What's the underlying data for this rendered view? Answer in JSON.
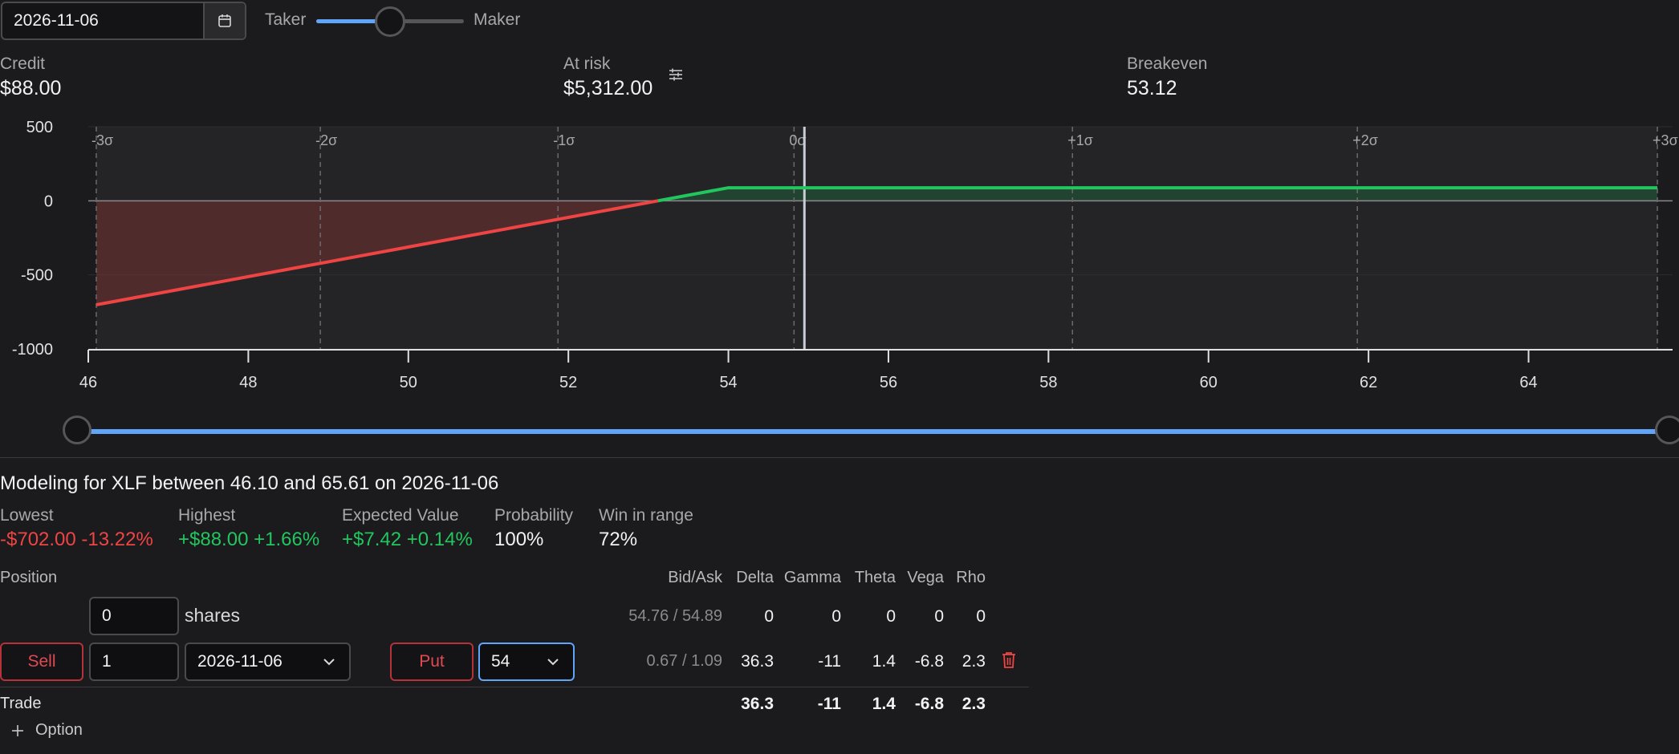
{
  "toolbar": {
    "date_value": "2026-11-06",
    "taker_label": "Taker",
    "maker_label": "Maker",
    "taker_maker_level": 0.5
  },
  "summary": {
    "credit_label": "Credit",
    "credit_value": "$88.00",
    "at_risk_label": "At risk",
    "at_risk_value": "$5,312.00",
    "breakeven_label": "Breakeven",
    "breakeven_value": "53.12"
  },
  "chart_data": {
    "type": "line",
    "x_ticks": [
      "46",
      "48",
      "50",
      "52",
      "54",
      "56",
      "58",
      "60",
      "62",
      "64"
    ],
    "y_ticks": [
      "500",
      "0",
      "-500",
      "-1000"
    ],
    "xlim": [
      46.1,
      65.61
    ],
    "ylim": [
      -1000,
      500
    ],
    "sigma_labels": [
      "-3σ",
      "-2σ",
      "-1σ",
      "0σ",
      "+1σ",
      "+2σ",
      "+3σ"
    ],
    "sigma_x": [
      46.1,
      48.9,
      51.87,
      54.82,
      58.3,
      61.86,
      65.61
    ],
    "current_price": 54.95,
    "payoff": {
      "x": [
        46.1,
        54,
        65.61
      ],
      "y": [
        -702,
        88,
        88
      ]
    },
    "breakeven": 53.12,
    "colors": {
      "loss": "#ef4444",
      "profit": "#22c55e",
      "current": "#c9cdd6",
      "range": "#60a5fa"
    }
  },
  "range": {
    "low": 46.1,
    "high": 65.61
  },
  "modeling": {
    "title": "Modeling for XLF between 46.10 and 65.61 on 2026-11-06",
    "lowest_label": "Lowest",
    "lowest_value": "-$702.00 -13.22%",
    "highest_label": "Highest",
    "highest_value": "+$88.00 +1.66%",
    "ev_label": "Expected Value",
    "ev_value": "+$7.42 +0.14%",
    "prob_label": "Probability",
    "prob_value": "100%",
    "win_label": "Win in range",
    "win_value": "72%"
  },
  "positions": {
    "header": {
      "position": "Position",
      "bidask": "Bid/Ask",
      "delta": "Delta",
      "gamma": "Gamma",
      "theta": "Theta",
      "vega": "Vega",
      "rho": "Rho"
    },
    "stock": {
      "qty": "0",
      "unit": "shares",
      "bidask": "54.76 / 54.89",
      "delta": "0",
      "gamma": "0",
      "theta": "0",
      "vega": "0",
      "rho": "0"
    },
    "option": {
      "side": "Sell",
      "qty": "1",
      "expiry": "2026-11-06",
      "type": "Put",
      "strike": "54",
      "bidask": "0.67 / 1.09",
      "delta": "36.3",
      "gamma": "-11",
      "theta": "1.4",
      "vega": "-6.8",
      "rho": "2.3"
    },
    "trade": {
      "label": "Trade",
      "delta": "36.3",
      "gamma": "-11",
      "theta": "1.4",
      "vega": "-6.8",
      "rho": "2.3"
    },
    "add_option_label": "Option"
  }
}
